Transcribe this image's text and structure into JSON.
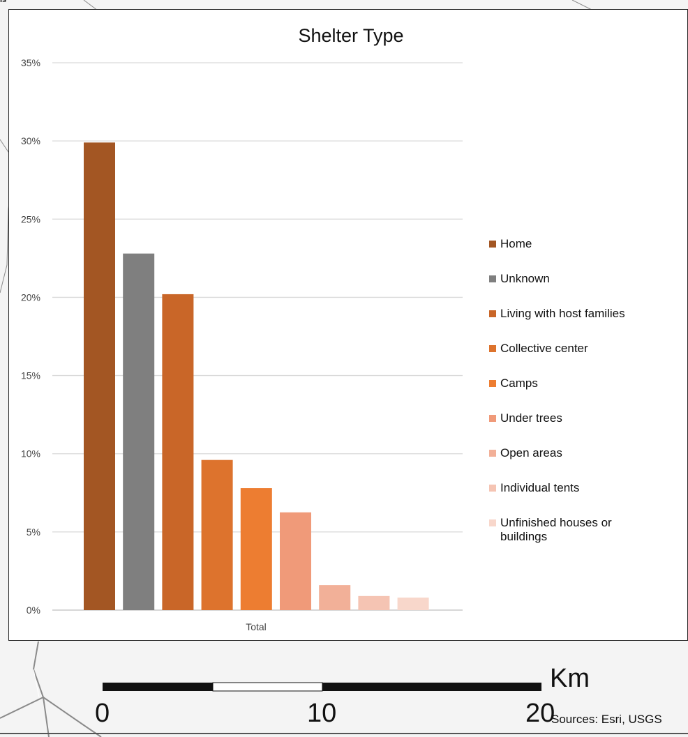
{
  "map": {
    "corner_label": "is",
    "scale_bar": {
      "unit": "Km",
      "ticks": [
        "0",
        "10",
        "20"
      ]
    },
    "sources": "Sources: Esri, USGS"
  },
  "chart_data": {
    "type": "bar",
    "title": "Shelter Type",
    "xlabel": "",
    "ylabel": "",
    "categories": [
      "Total"
    ],
    "ylim": [
      0,
      35
    ],
    "yticks": [
      "0%",
      "5%",
      "10%",
      "15%",
      "20%",
      "25%",
      "30%",
      "35%"
    ],
    "grid": true,
    "legend_position": "right",
    "series": [
      {
        "name": "Home",
        "values": [
          29.9
        ],
        "color": "#a35623"
      },
      {
        "name": "Unknown",
        "values": [
          22.8
        ],
        "color": "#7f7f7f"
      },
      {
        "name": "Living with host families",
        "values": [
          20.2
        ],
        "color": "#c96628"
      },
      {
        "name": "Collective center",
        "values": [
          9.6
        ],
        "color": "#dd732d"
      },
      {
        "name": "Camps",
        "values": [
          7.8
        ],
        "color": "#ed7d31"
      },
      {
        "name": "Under trees",
        "values": [
          6.25
        ],
        "color": "#f09a79"
      },
      {
        "name": "Open areas",
        "values": [
          1.6
        ],
        "color": "#f2b098"
      },
      {
        "name": "Individual tents",
        "values": [
          0.9
        ],
        "color": "#f5c4b3"
      },
      {
        "name": "Unfinished houses or buildings",
        "values": [
          0.8
        ],
        "color": "#f8d7cb"
      }
    ]
  }
}
